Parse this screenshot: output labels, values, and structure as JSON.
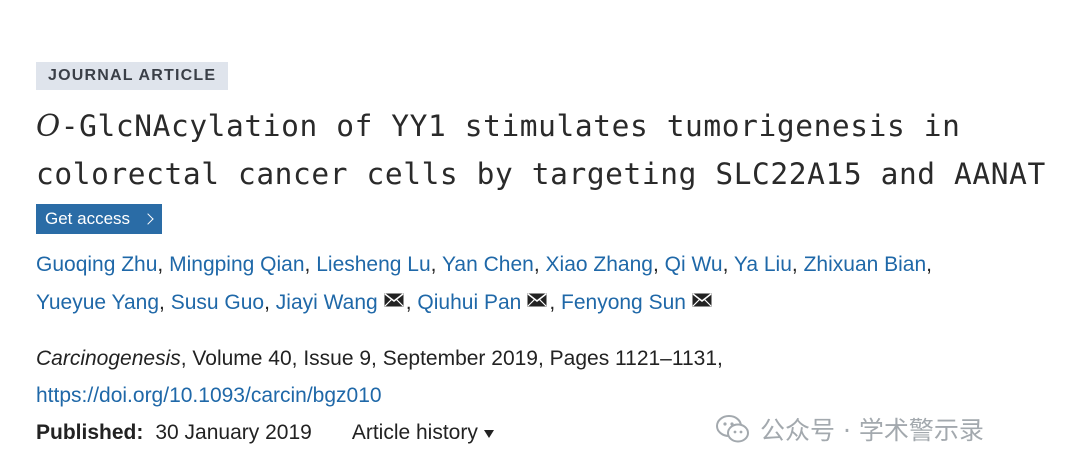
{
  "badge": "JOURNAL ARTICLE",
  "title": {
    "italic_prefix": "O",
    "line1_rest": "-GlcNAcylation of YY1 stimulates tumorigenesis in",
    "line2": "colorectal cancer cells by targeting SLC22A15 and AANAT"
  },
  "access_button": "Get access",
  "authors": [
    {
      "name": "Guoqing Zhu",
      "mail": false
    },
    {
      "name": "Mingping Qian",
      "mail": false
    },
    {
      "name": "Liesheng Lu",
      "mail": false
    },
    {
      "name": "Yan Chen",
      "mail": false
    },
    {
      "name": "Xiao Zhang",
      "mail": false
    },
    {
      "name": "Qi Wu",
      "mail": false
    },
    {
      "name": "Ya Liu",
      "mail": false
    },
    {
      "name": "Zhixuan Bian",
      "mail": false
    },
    {
      "name": "Yueyue Yang",
      "mail": false
    },
    {
      "name": "Susu Guo",
      "mail": false
    },
    {
      "name": "Jiayi Wang",
      "mail": true
    },
    {
      "name": "Qiuhui Pan",
      "mail": true
    },
    {
      "name": "Fenyong Sun",
      "mail": true
    }
  ],
  "separator": ",",
  "citation": {
    "journal": "Carcinogenesis",
    "details": ", Volume 40, Issue 9, September 2019, Pages 1121–1131,",
    "doi": "https://doi.org/10.1093/carcin/bgz010"
  },
  "published": {
    "label": "Published:",
    "date": "30 January 2019"
  },
  "history_label": "Article history",
  "watermark": "公众号 · 学术警示录",
  "icons": {
    "mail": "envelope-icon",
    "chevron": "chevron-right-icon",
    "caret": "caret-down-icon",
    "watermark": "wechat-icon"
  },
  "colors": {
    "link": "#1f68a8",
    "button": "#2a6ca6",
    "badge_bg": "#dfe4ec"
  }
}
